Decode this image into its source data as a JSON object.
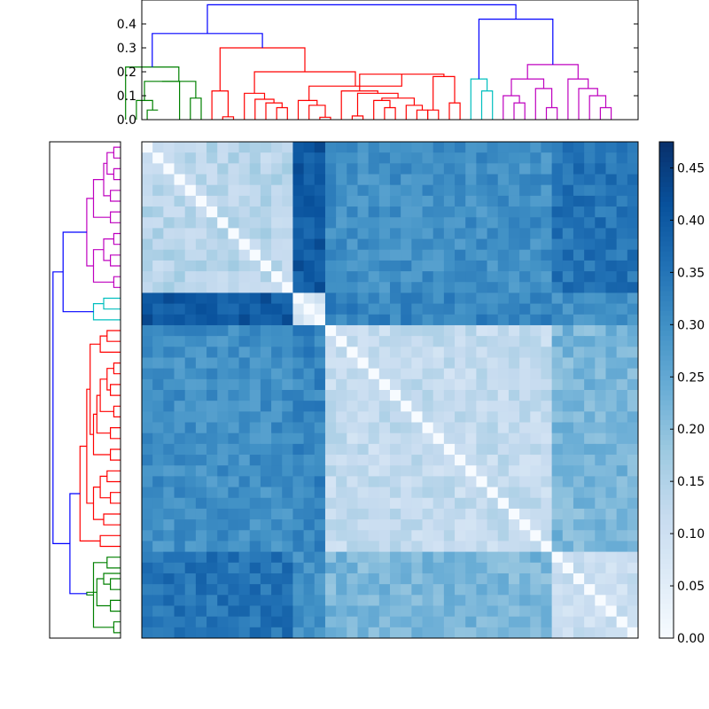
{
  "chart_data": [
    {
      "type": "dendrogram",
      "orientation": "top",
      "ylim": [
        0,
        0.5
      ],
      "yticks": [
        "0.0",
        "0.1",
        "0.2",
        "0.3",
        "0.4"
      ],
      "leaf_count": 46,
      "colors": {
        "green": "#008000",
        "red": "#ff0000",
        "cyan": "#00bfbf",
        "magenta": "#bf00bf",
        "blue": "#0000ff"
      },
      "links": [
        {
          "c": "green",
          "l": 0.0,
          "r": 1.0,
          "hl": 0,
          "hr": 0.04,
          "h": 0.04
        },
        {
          "c": "green",
          "l": -1.0,
          "r": 0.5,
          "hl": 0,
          "hr": 0.04,
          "h": 0.08
        },
        {
          "c": "green",
          "l": -0.25,
          "r": 3.0,
          "hl": 0.08,
          "hr": 0,
          "h": 0.16
        },
        {
          "c": "green",
          "l": 4.0,
          "r": 5.0,
          "hl": 0,
          "hr": 0,
          "h": 0.09
        },
        {
          "c": "green",
          "l": 1.375,
          "r": 4.5,
          "hl": 0.16,
          "hr": 0.09,
          "h": 0.16
        },
        {
          "c": "green",
          "l": -2.0,
          "r": 2.9375,
          "hl": 0,
          "hr": 0.16,
          "h": 0.22
        },
        {
          "c": "red",
          "l": 7.0,
          "r": 8.0,
          "hl": 0,
          "hr": 0,
          "h": 0.012
        },
        {
          "c": "red",
          "l": 6.0,
          "r": 7.5,
          "hl": 0,
          "hr": 0.012,
          "h": 0.12
        },
        {
          "c": "red",
          "l": 12.0,
          "r": 13.0,
          "hl": 0,
          "hr": 0,
          "h": 0.05
        },
        {
          "c": "red",
          "l": 11.0,
          "r": 12.5,
          "hl": 0,
          "hr": 0.05,
          "h": 0.07
        },
        {
          "c": "red",
          "l": 10.0,
          "r": 11.75,
          "hl": 0,
          "hr": 0.07,
          "h": 0.085
        },
        {
          "c": "red",
          "l": 9.0,
          "r": 10.875,
          "hl": 0,
          "hr": 0.085,
          "h": 0.11
        },
        {
          "c": "red",
          "l": 16.0,
          "r": 17.0,
          "hl": 0,
          "hr": 0,
          "h": 0.01
        },
        {
          "c": "red",
          "l": 15.0,
          "r": 16.5,
          "hl": 0,
          "hr": 0.01,
          "h": 0.06
        },
        {
          "c": "red",
          "l": 14.0,
          "r": 15.75,
          "hl": 0,
          "hr": 0.06,
          "h": 0.08
        },
        {
          "c": "red",
          "l": 19.0,
          "r": 20.0,
          "hl": 0,
          "hr": 0,
          "h": 0.015
        },
        {
          "c": "red",
          "l": 22.0,
          "r": 23.0,
          "hl": 0,
          "hr": 0,
          "h": 0.05
        },
        {
          "c": "red",
          "l": 21.0,
          "r": 22.5,
          "hl": 0,
          "hr": 0.05,
          "h": 0.08
        },
        {
          "c": "red",
          "l": 25.0,
          "r": 26.0,
          "hl": 0,
          "hr": 0,
          "h": 0.04
        },
        {
          "c": "red",
          "l": 24.0,
          "r": 25.5,
          "hl": 0,
          "hr": 0.04,
          "h": 0.06
        },
        {
          "c": "red",
          "l": 21.75,
          "r": 24.75,
          "hl": 0.08,
          "hr": 0.06,
          "h": 0.09
        },
        {
          "c": "red",
          "l": 19.5,
          "r": 23.25,
          "hl": 0.015,
          "hr": 0.09,
          "h": 0.11
        },
        {
          "c": "red",
          "l": 18.0,
          "r": 21.375,
          "hl": 0,
          "hr": 0.11,
          "h": 0.12
        },
        {
          "c": "red",
          "l": 26.0,
          "r": 27.0,
          "hl": 0,
          "hr": 0,
          "h": 0.04
        },
        {
          "c": "red",
          "l": 28.0,
          "r": 29.0,
          "hl": 0,
          "hr": 0,
          "h": 0.07
        },
        {
          "c": "red",
          "l": 26.5,
          "r": 28.5,
          "hl": 0.04,
          "hr": 0.07,
          "h": 0.18
        },
        {
          "c": "red",
          "l": 19.6875,
          "r": 27.5,
          "hl": 0.12,
          "hr": 0.18,
          "h": 0.19
        },
        {
          "c": "red",
          "l": 15.0,
          "r": 23.59375,
          "hl": 0.08,
          "hr": 0.19,
          "h": 0.14
        },
        {
          "c": "red",
          "l": 9.9375,
          "r": 19.296875,
          "hl": 0.11,
          "hr": 0.14,
          "h": 0.2
        },
        {
          "c": "red",
          "l": 6.75,
          "r": 14.6171875,
          "hl": 0.12,
          "hr": 0.2,
          "h": 0.3
        },
        {
          "c": "cyan",
          "l": 31.0,
          "r": 32.0,
          "hl": 0,
          "hr": 0,
          "h": 0.12
        },
        {
          "c": "cyan",
          "l": 30.0,
          "r": 31.5,
          "hl": 0,
          "hr": 0.12,
          "h": 0.17
        },
        {
          "c": "magenta",
          "l": 34.0,
          "r": 35.0,
          "hl": 0,
          "hr": 0,
          "h": 0.07
        },
        {
          "c": "magenta",
          "l": 33.0,
          "r": 34.5,
          "hl": 0,
          "hr": 0.07,
          "h": 0.1
        },
        {
          "c": "magenta",
          "l": 37.0,
          "r": 38.0,
          "hl": 0,
          "hr": 0,
          "h": 0.05
        },
        {
          "c": "magenta",
          "l": 36.0,
          "r": 37.5,
          "hl": 0,
          "hr": 0.05,
          "h": 0.13
        },
        {
          "c": "magenta",
          "l": 42.0,
          "r": 43.0,
          "hl": 0,
          "hr": 0,
          "h": 0.05
        },
        {
          "c": "magenta",
          "l": 41.0,
          "r": 42.5,
          "hl": 0,
          "hr": 0.05,
          "h": 0.1
        },
        {
          "c": "magenta",
          "l": 40.0,
          "r": 41.75,
          "hl": 0,
          "hr": 0.1,
          "h": 0.13
        },
        {
          "c": "magenta",
          "l": 39.0,
          "r": 40.875,
          "hl": 0,
          "hr": 0.13,
          "h": 0.17
        },
        {
          "c": "magenta",
          "l": 33.75,
          "r": 36.75,
          "hl": 0.1,
          "hr": 0.13,
          "h": 0.17
        },
        {
          "c": "magenta",
          "l": 35.25,
          "r": 39.9375,
          "hl": 0.17,
          "hr": 0.17,
          "h": 0.23
        },
        {
          "c": "blue",
          "l": 0.46875,
          "r": 10.68359375,
          "hl": 0.22,
          "hr": 0.3,
          "h": 0.36
        },
        {
          "c": "blue",
          "l": 30.75,
          "r": 37.59375,
          "hl": 0.17,
          "hr": 0.23,
          "h": 0.42
        },
        {
          "c": "blue",
          "l": 5.576171875,
          "r": 34.171875,
          "hl": 0.36,
          "hr": 0.42,
          "h": 0.48
        }
      ]
    },
    {
      "type": "dendrogram",
      "orientation": "left",
      "leaf_count": 46,
      "links": [
        {
          "c": "magenta",
          "l": 0.0,
          "r": 1.0,
          "h": 0.02
        },
        {
          "c": "magenta",
          "l": 2.0,
          "r": 3.0,
          "h": 0.02
        },
        {
          "c": "magenta",
          "l": 0.5,
          "r": 2.5,
          "h": 0.04
        },
        {
          "c": "magenta",
          "l": 4.0,
          "r": 5.0,
          "h": 0.03
        },
        {
          "c": "magenta",
          "l": 1.5,
          "r": 4.5,
          "h": 0.05
        },
        {
          "c": "magenta",
          "l": 6.0,
          "r": 7.0,
          "h": 0.03
        },
        {
          "c": "magenta",
          "l": 3.0,
          "r": 6.5,
          "h": 0.08
        },
        {
          "c": "magenta",
          "l": 8.0,
          "r": 9.0,
          "h": 0.02
        },
        {
          "c": "magenta",
          "l": 10.0,
          "r": 11.0,
          "h": 0.03
        },
        {
          "c": "magenta",
          "l": 8.5,
          "r": 10.5,
          "h": 0.05
        },
        {
          "c": "magenta",
          "l": 12.0,
          "r": 13.0,
          "h": 0.02
        },
        {
          "c": "magenta",
          "l": 9.5,
          "r": 12.5,
          "h": 0.08
        },
        {
          "c": "magenta",
          "l": 4.75,
          "r": 11.0,
          "h": 0.1
        },
        {
          "c": "cyan",
          "l": 14.0,
          "r": 15.0,
          "h": 0.05
        },
        {
          "c": "cyan",
          "l": 14.5,
          "r": 16.0,
          "h": 0.08
        },
        {
          "c": "red",
          "l": 17.0,
          "r": 18.0,
          "h": 0.04
        },
        {
          "c": "red",
          "l": 17.5,
          "r": 19.0,
          "h": 0.06
        },
        {
          "c": "red",
          "l": 20.0,
          "r": 21.0,
          "h": 0.02
        },
        {
          "c": "red",
          "l": 22.0,
          "r": 23.0,
          "h": 0.03
        },
        {
          "c": "red",
          "l": 20.5,
          "r": 22.5,
          "h": 0.04
        },
        {
          "c": "red",
          "l": 24.0,
          "r": 25.0,
          "h": 0.02
        },
        {
          "c": "red",
          "l": 21.5,
          "r": 24.5,
          "h": 0.06
        },
        {
          "c": "red",
          "l": 26.0,
          "r": 27.0,
          "h": 0.03
        },
        {
          "c": "red",
          "l": 23.0,
          "r": 26.5,
          "h": 0.07
        },
        {
          "c": "red",
          "l": 28.0,
          "r": 29.0,
          "h": 0.03
        },
        {
          "c": "red",
          "l": 24.75,
          "r": 28.5,
          "h": 0.08
        },
        {
          "c": "red",
          "l": 18.25,
          "r": 26.625,
          "h": 0.09
        },
        {
          "c": "red",
          "l": 30.0,
          "r": 31.0,
          "h": 0.04
        },
        {
          "c": "red",
          "l": 32.0,
          "r": 33.0,
          "h": 0.03
        },
        {
          "c": "red",
          "l": 30.5,
          "r": 32.5,
          "h": 0.06
        },
        {
          "c": "red",
          "l": 34.0,
          "r": 35.0,
          "h": 0.05
        },
        {
          "c": "red",
          "l": 31.5,
          "r": 34.5,
          "h": 0.08
        },
        {
          "c": "red",
          "l": 22.4375,
          "r": 33.0,
          "h": 0.1
        },
        {
          "c": "red",
          "l": 36.0,
          "r": 37.0,
          "h": 0.06
        },
        {
          "c": "red",
          "l": 27.71875,
          "r": 36.5,
          "h": 0.12
        },
        {
          "c": "green",
          "l": 38.0,
          "r": 39.0,
          "h": 0.04
        },
        {
          "c": "green",
          "l": 40.0,
          "r": 41.0,
          "h": 0.03
        },
        {
          "c": "green",
          "l": 39.5,
          "r": 40.5,
          "h": 0.05
        },
        {
          "c": "green",
          "l": 42.0,
          "r": 43.0,
          "h": 0.03
        },
        {
          "c": "green",
          "l": 40.0,
          "r": 42.5,
          "h": 0.07
        },
        {
          "c": "green",
          "l": 44.0,
          "r": 45.0,
          "h": 0.02
        },
        {
          "c": "green",
          "l": 38.5,
          "r": 44.5,
          "h": 0.08
        },
        {
          "c": "green",
          "l": 41.25,
          "r": 41.5,
          "h": 0.1
        },
        {
          "c": "blue",
          "l": 7.875,
          "r": 15.25,
          "h": 0.17
        },
        {
          "c": "blue",
          "l": 32.109375,
          "r": 41.375,
          "h": 0.15
        },
        {
          "c": "blue",
          "l": 11.5625,
          "r": 36.7421875,
          "h": 0.2
        }
      ]
    },
    {
      "type": "heatmap",
      "size": 46,
      "colormap": "Blues",
      "vmin": 0.0,
      "vmax": 0.475,
      "groups": [
        {
          "name": "magenta",
          "start": 0,
          "end": 13
        },
        {
          "name": "cyan",
          "start": 14,
          "end": 16
        },
        {
          "name": "red",
          "start": 17,
          "end": 37
        },
        {
          "name": "green",
          "start": 38,
          "end": 45
        }
      ],
      "block_means": [
        [
          0.14,
          0.4,
          0.3,
          0.35
        ],
        [
          0.4,
          0.07,
          0.32,
          0.3
        ],
        [
          0.3,
          0.32,
          0.12,
          0.22
        ],
        [
          0.35,
          0.3,
          0.22,
          0.1
        ]
      ],
      "noise": 0.035
    },
    {
      "type": "colorbar",
      "colormap": "Blues",
      "range": [
        0.0,
        0.475
      ],
      "ticks": [
        "0.00",
        "0.05",
        "0.10",
        "0.15",
        "0.20",
        "0.25",
        "0.30",
        "0.35",
        "0.40",
        "0.45"
      ]
    }
  ]
}
